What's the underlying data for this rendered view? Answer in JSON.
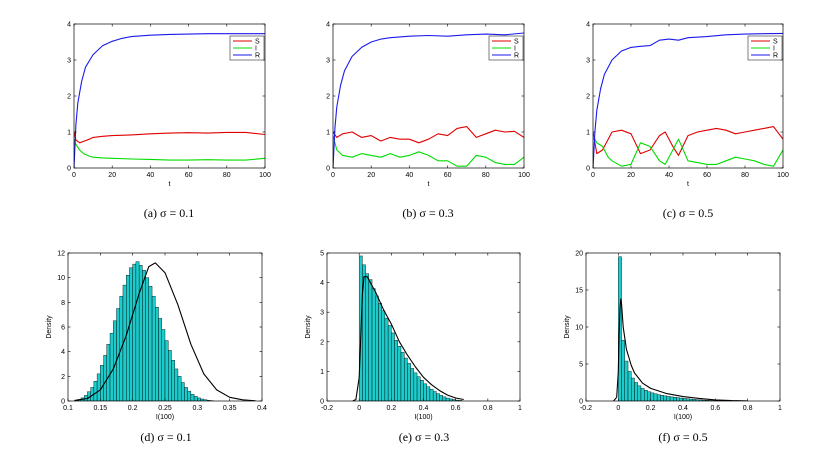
{
  "chart_data": [
    {
      "type": "line",
      "caption": "(a) σ = 0.1",
      "xlabel": "t",
      "ylabel": "",
      "xlim": [
        0,
        100
      ],
      "ylim": [
        0,
        4
      ],
      "xticks": [
        "0",
        "20",
        "40",
        "60",
        "80",
        "100"
      ],
      "yticks": [
        "0",
        "1",
        "2",
        "3",
        "4"
      ],
      "legend_position": "top-right",
      "series": [
        {
          "name": "S",
          "color": "#e00000",
          "x": [
            0,
            1,
            3,
            5,
            8,
            10,
            15,
            20,
            30,
            40,
            50,
            60,
            70,
            80,
            90,
            100
          ],
          "y": [
            1.0,
            0.78,
            0.7,
            0.74,
            0.8,
            0.85,
            0.88,
            0.9,
            0.92,
            0.95,
            0.97,
            0.98,
            0.97,
            0.99,
            0.99,
            0.93
          ]
        },
        {
          "name": "I",
          "color": "#00dd00",
          "x": [
            0,
            1,
            3,
            5,
            8,
            10,
            15,
            20,
            30,
            40,
            50,
            60,
            70,
            80,
            90,
            100
          ],
          "y": [
            0.8,
            0.65,
            0.5,
            0.4,
            0.33,
            0.3,
            0.28,
            0.27,
            0.25,
            0.24,
            0.22,
            0.22,
            0.23,
            0.22,
            0.22,
            0.27
          ]
        },
        {
          "name": "R",
          "color": "#1a1aee",
          "x": [
            0,
            1,
            2,
            4,
            6,
            10,
            15,
            20,
            25,
            30,
            40,
            50,
            60,
            70,
            80,
            90,
            100
          ],
          "y": [
            0.0,
            1.2,
            1.8,
            2.4,
            2.8,
            3.15,
            3.4,
            3.52,
            3.6,
            3.65,
            3.69,
            3.71,
            3.72,
            3.73,
            3.73,
            3.73,
            3.73
          ]
        }
      ]
    },
    {
      "type": "line",
      "caption": "(b) σ = 0.3",
      "xlabel": "t",
      "ylabel": "",
      "xlim": [
        0,
        100
      ],
      "ylim": [
        0,
        4
      ],
      "xticks": [
        "0",
        "20",
        "40",
        "60",
        "80",
        "100"
      ],
      "yticks": [
        "0",
        "1",
        "2",
        "3",
        "4"
      ],
      "legend_position": "top-right",
      "series": [
        {
          "name": "S",
          "color": "#e00000",
          "x": [
            0,
            2,
            5,
            10,
            15,
            20,
            25,
            30,
            35,
            40,
            45,
            50,
            55,
            60,
            65,
            70,
            75,
            80,
            85,
            90,
            95,
            100
          ],
          "y": [
            1.0,
            0.85,
            0.95,
            1.0,
            0.85,
            0.9,
            0.75,
            0.85,
            0.8,
            0.8,
            0.7,
            0.8,
            0.95,
            0.9,
            1.1,
            1.15,
            0.85,
            0.95,
            1.05,
            1.0,
            1.02,
            0.85
          ]
        },
        {
          "name": "I",
          "color": "#00dd00",
          "x": [
            0,
            2,
            5,
            10,
            15,
            20,
            25,
            30,
            35,
            40,
            45,
            50,
            55,
            60,
            65,
            70,
            75,
            80,
            85,
            90,
            95,
            100
          ],
          "y": [
            0.9,
            0.5,
            0.35,
            0.3,
            0.4,
            0.35,
            0.3,
            0.4,
            0.3,
            0.35,
            0.45,
            0.35,
            0.2,
            0.2,
            0.05,
            0.05,
            0.35,
            0.3,
            0.15,
            0.1,
            0.1,
            0.3
          ]
        },
        {
          "name": "R",
          "color": "#1a1aee",
          "x": [
            0,
            1,
            2,
            4,
            6,
            10,
            15,
            20,
            25,
            30,
            40,
            50,
            60,
            70,
            80,
            90,
            100
          ],
          "y": [
            0.0,
            1.1,
            1.7,
            2.3,
            2.7,
            3.1,
            3.35,
            3.5,
            3.58,
            3.62,
            3.66,
            3.68,
            3.66,
            3.7,
            3.72,
            3.7,
            3.75
          ]
        }
      ]
    },
    {
      "type": "line",
      "caption": "(c) σ = 0.5",
      "xlabel": "t",
      "ylabel": "",
      "xlim": [
        0,
        100
      ],
      "ylim": [
        0,
        4
      ],
      "xticks": [
        "0",
        "20",
        "40",
        "60",
        "80",
        "100"
      ],
      "yticks": [
        "0",
        "1",
        "2",
        "3",
        "4"
      ],
      "legend_position": "top-right",
      "series": [
        {
          "name": "S",
          "color": "#e00000",
          "x": [
            0,
            2,
            5,
            8,
            10,
            15,
            20,
            25,
            30,
            35,
            38,
            42,
            45,
            50,
            55,
            60,
            65,
            70,
            75,
            80,
            85,
            90,
            95,
            100
          ],
          "y": [
            1.0,
            0.4,
            0.5,
            0.8,
            1.0,
            1.05,
            0.95,
            0.4,
            0.5,
            0.9,
            1.0,
            0.6,
            0.35,
            0.9,
            1.0,
            1.05,
            1.1,
            1.05,
            0.95,
            1.0,
            1.05,
            1.1,
            1.15,
            0.8
          ]
        },
        {
          "name": "I",
          "color": "#00dd00",
          "x": [
            0,
            2,
            5,
            8,
            10,
            15,
            20,
            25,
            30,
            35,
            38,
            42,
            45,
            50,
            55,
            60,
            65,
            70,
            75,
            80,
            85,
            90,
            95,
            100
          ],
          "y": [
            0.9,
            0.7,
            0.6,
            0.3,
            0.2,
            0.05,
            0.1,
            0.7,
            0.6,
            0.2,
            0.1,
            0.5,
            0.8,
            0.2,
            0.15,
            0.1,
            0.1,
            0.2,
            0.3,
            0.25,
            0.2,
            0.1,
            0.05,
            0.5
          ]
        },
        {
          "name": "R",
          "color": "#1a1aee",
          "x": [
            0,
            1,
            2,
            4,
            6,
            10,
            15,
            20,
            25,
            30,
            35,
            40,
            45,
            50,
            60,
            70,
            80,
            90,
            100
          ],
          "y": [
            0.0,
            1.0,
            1.6,
            2.2,
            2.6,
            3.0,
            3.25,
            3.35,
            3.38,
            3.4,
            3.55,
            3.58,
            3.55,
            3.62,
            3.65,
            3.7,
            3.72,
            3.73,
            3.74
          ]
        }
      ]
    },
    {
      "type": "histogram",
      "caption": "(d) σ = 0.1",
      "xlabel": "I(100)",
      "ylabel": "Density",
      "xlim": [
        0.1,
        0.4
      ],
      "ylim": [
        0,
        12
      ],
      "xticks": [
        "0.1",
        "0.15",
        "0.2",
        "0.25",
        "0.3",
        "0.35",
        "0.4"
      ],
      "yticks": [
        "0",
        "2",
        "4",
        "6",
        "8",
        "10",
        "12"
      ],
      "bar_color": "#1ccccc",
      "curve_color": "#000000",
      "bin_start": 0.11,
      "bin_width": 0.005,
      "values": [
        0.05,
        0.12,
        0.25,
        0.45,
        0.75,
        1.1,
        1.6,
        2.2,
        2.9,
        3.7,
        4.6,
        5.5,
        6.5,
        7.5,
        8.5,
        9.4,
        10.2,
        10.8,
        11.1,
        11.3,
        11.0,
        10.6,
        10.0,
        9.3,
        8.5,
        7.6,
        6.7,
        5.8,
        4.9,
        4.1,
        3.3,
        2.6,
        2.0,
        1.5,
        1.1,
        0.8,
        0.55,
        0.38,
        0.25,
        0.16,
        0.1,
        0.06,
        0.03
      ],
      "curve_x": [
        0.11,
        0.13,
        0.15,
        0.17,
        0.19,
        0.21,
        0.225,
        0.235,
        0.25,
        0.27,
        0.29,
        0.31,
        0.33,
        0.35,
        0.37,
        0.39
      ],
      "curve_y": [
        0.05,
        0.2,
        0.9,
        2.6,
        5.3,
        8.7,
        10.9,
        11.2,
        10.4,
        7.8,
        4.6,
        2.2,
        0.9,
        0.3,
        0.1,
        0.02
      ]
    },
    {
      "type": "histogram",
      "caption": "(e) σ = 0.3",
      "xlabel": "I(100)",
      "ylabel": "Density",
      "xlim": [
        -0.2,
        1
      ],
      "ylim": [
        0,
        5
      ],
      "xticks": [
        "-0.2",
        "0",
        "0.2",
        "0.4",
        "0.6",
        "0.8",
        "1"
      ],
      "yticks": [
        "0",
        "1",
        "2",
        "3",
        "4",
        "5"
      ],
      "bar_color": "#1ccccc",
      "curve_color": "#000000",
      "bin_start": 0.0,
      "bin_width": 0.02,
      "values": [
        4.9,
        4.6,
        4.3,
        4.1,
        3.8,
        3.55,
        3.3,
        3.05,
        2.8,
        2.55,
        2.3,
        2.05,
        1.85,
        1.65,
        1.45,
        1.27,
        1.1,
        0.95,
        0.82,
        0.7,
        0.58,
        0.48,
        0.4,
        0.32,
        0.25,
        0.19,
        0.14,
        0.1,
        0.07,
        0.05,
        0.03,
        0.02
      ],
      "curve_x": [
        -0.04,
        -0.02,
        0.0,
        0.01,
        0.02,
        0.03,
        0.05,
        0.08,
        0.1,
        0.15,
        0.2,
        0.25,
        0.3,
        0.35,
        0.4,
        0.45,
        0.5,
        0.55,
        0.6,
        0.65
      ],
      "curve_y": [
        0.0,
        0.05,
        0.8,
        2.2,
        3.6,
        4.2,
        4.2,
        3.9,
        3.7,
        3.1,
        2.6,
        2.0,
        1.55,
        1.15,
        0.8,
        0.55,
        0.35,
        0.2,
        0.1,
        0.05
      ]
    },
    {
      "type": "histogram",
      "caption": "(f) σ = 0.5",
      "xlabel": "I(100)",
      "ylabel": "Density",
      "xlim": [
        -0.2,
        1
      ],
      "ylim": [
        0,
        20
      ],
      "xticks": [
        "-0.2",
        "0",
        "0.2",
        "0.4",
        "0.6",
        "0.8",
        "1"
      ],
      "yticks": [
        "0",
        "5",
        "10",
        "15",
        "20"
      ],
      "bar_color": "#1ccccc",
      "curve_color": "#000000",
      "bin_start": 0.0,
      "bin_width": 0.02,
      "values": [
        19.5,
        8.2,
        5.4,
        4.0,
        3.1,
        2.5,
        2.05,
        1.7,
        1.45,
        1.25,
        1.1,
        0.97,
        0.86,
        0.77,
        0.69,
        0.62,
        0.56,
        0.5,
        0.45,
        0.4,
        0.35,
        0.3,
        0.26,
        0.22,
        0.18,
        0.15,
        0.12,
        0.1,
        0.08,
        0.06,
        0.05,
        0.04,
        0.03,
        0.02,
        0.02,
        0.01,
        0.01,
        0.01
      ],
      "curve_x": [
        -0.03,
        -0.01,
        0.0,
        0.005,
        0.01,
        0.015,
        0.02,
        0.03,
        0.05,
        0.08,
        0.1,
        0.15,
        0.2,
        0.3,
        0.4,
        0.5,
        0.6,
        0.7,
        0.8
      ],
      "curve_y": [
        0.0,
        0.5,
        4.0,
        9.0,
        12.5,
        13.8,
        13.0,
        10.0,
        7.0,
        4.8,
        3.8,
        2.4,
        1.7,
        1.0,
        0.6,
        0.35,
        0.15,
        0.05,
        0.02
      ]
    }
  ]
}
